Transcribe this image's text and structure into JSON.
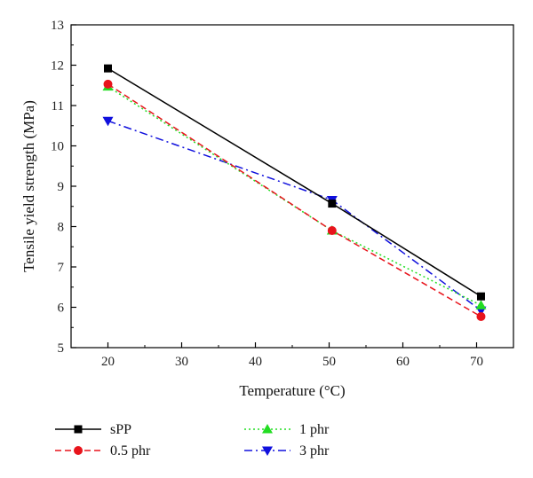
{
  "chart_data": {
    "type": "line",
    "title": "",
    "xlabel": "Temperature (°C)",
    "ylabel": "Tensile yield strength (MPa)",
    "xlim": [
      15,
      75
    ],
    "ylim": [
      5,
      13
    ],
    "x_ticks": [
      "20",
      "30",
      "40",
      "50",
      "60",
      "70"
    ],
    "y_ticks": [
      "5",
      "6",
      "7",
      "8",
      "9",
      "10",
      "11",
      "12",
      "13"
    ],
    "grid": false,
    "legend_position": "bottom",
    "series": [
      {
        "name": "sPP",
        "x": [
          20,
          50.4,
          70.6
        ],
        "y": [
          11.92,
          8.57,
          6.27
        ],
        "color": "#000000",
        "marker": "square",
        "line_style": "solid"
      },
      {
        "name": "0.5 phr",
        "x": [
          20,
          50.4,
          70.6
        ],
        "y": [
          11.53,
          7.9,
          5.77
        ],
        "color": "#e8141c",
        "marker": "circle",
        "line_style": "dashed"
      },
      {
        "name": "1 phr",
        "x": [
          20,
          50.4,
          70.6
        ],
        "y": [
          11.47,
          7.9,
          6.05
        ],
        "color": "#22dd22",
        "marker": "triangle-up",
        "line_style": "dotted"
      },
      {
        "name": "3 phr",
        "x": [
          20,
          50.4,
          70.6
        ],
        "y": [
          10.62,
          8.66,
          5.92
        ],
        "color": "#1010dd",
        "marker": "triangle-down",
        "line_style": "dashdot"
      }
    ]
  }
}
